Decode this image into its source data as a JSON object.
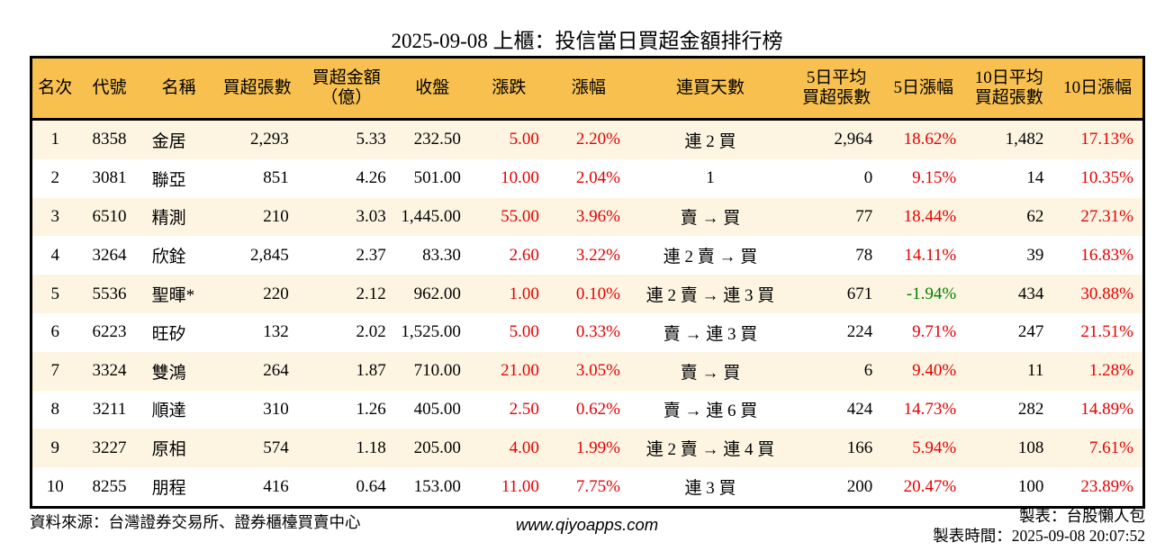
{
  "title": "2025-09-08 上櫃：投信當日買超金額排行榜",
  "colors": {
    "header_bg": "#F7C04F",
    "row_alt_bg": "#FDF5E2",
    "up_red": "#E60000",
    "down_green": "#008000",
    "border": "#000000"
  },
  "table": {
    "headers": [
      {
        "l1": "名次"
      },
      {
        "l1": "代號"
      },
      {
        "l1": "名稱"
      },
      {
        "l1": "買超張數"
      },
      {
        "l1": "買超金額",
        "l2": "（億）"
      },
      {
        "l1": "收盤"
      },
      {
        "l1": "漲跌"
      },
      {
        "l1": "漲幅"
      },
      {
        "l1": "連買天數"
      },
      {
        "l1": "5日平均",
        "l2": "買超張數"
      },
      {
        "l1": "5日漲幅"
      },
      {
        "l1": "10日平均",
        "l2": "買超張數"
      },
      {
        "l1": "10日漲幅"
      }
    ],
    "rows": [
      [
        "1",
        "8358",
        "金居",
        "2,293",
        "5.33",
        "232.50",
        "5.00",
        "2.20%",
        "連 2 買",
        "2,964",
        "18.62%",
        "1,482",
        "17.13%"
      ],
      [
        "2",
        "3081",
        "聯亞",
        "851",
        "4.26",
        "501.00",
        "10.00",
        "2.04%",
        "1",
        "0",
        "9.15%",
        "14",
        "10.35%"
      ],
      [
        "3",
        "6510",
        "精測",
        "210",
        "3.03",
        "1,445.00",
        "55.00",
        "3.96%",
        "賣 → 買",
        "77",
        "18.44%",
        "62",
        "27.31%"
      ],
      [
        "4",
        "3264",
        "欣銓",
        "2,845",
        "2.37",
        "83.30",
        "2.60",
        "3.22%",
        "連 2 賣 → 買",
        "78",
        "14.11%",
        "39",
        "16.83%"
      ],
      [
        "5",
        "5536",
        "聖暉*",
        "220",
        "2.12",
        "962.00",
        "1.00",
        "0.10%",
        "連 2 賣 → 連 3 買",
        "671",
        "-1.94%",
        "434",
        "30.88%"
      ],
      [
        "6",
        "6223",
        "旺矽",
        "132",
        "2.02",
        "1,525.00",
        "5.00",
        "0.33%",
        "賣 → 連 3 買",
        "224",
        "9.71%",
        "247",
        "21.51%"
      ],
      [
        "7",
        "3324",
        "雙鴻",
        "264",
        "1.87",
        "710.00",
        "21.00",
        "3.05%",
        "賣 → 買",
        "6",
        "9.40%",
        "11",
        "1.28%"
      ],
      [
        "8",
        "3211",
        "順達",
        "310",
        "1.26",
        "405.00",
        "2.50",
        "0.62%",
        "賣 → 連 6 買",
        "424",
        "14.73%",
        "282",
        "14.89%"
      ],
      [
        "9",
        "3227",
        "原相",
        "574",
        "1.18",
        "205.00",
        "4.00",
        "1.99%",
        "連 2 賣 → 連 4 買",
        "166",
        "5.94%",
        "108",
        "7.61%"
      ],
      [
        "10",
        "8255",
        "朋程",
        "416",
        "0.64",
        "153.00",
        "11.00",
        "7.75%",
        "連 3 買",
        "200",
        "20.47%",
        "100",
        "23.89%"
      ]
    ]
  },
  "footer": {
    "source": "資料來源：台灣證券交易所、證券櫃檯買賣中心",
    "website": "www.qiyoapps.com",
    "made_by": "製表：台股懶人包",
    "made_time": "製表時間：2025-09-08 20:07:52"
  },
  "chart_data": {
    "type": "table",
    "title": "2025-09-08 上櫃：投信當日買超金額排行榜",
    "columns": [
      "名次",
      "代號",
      "名稱",
      "買超張數",
      "買超金額（億）",
      "收盤",
      "漲跌",
      "漲幅",
      "連買天數",
      "5日平均買超張數",
      "5日漲幅",
      "10日平均買超張數",
      "10日漲幅"
    ],
    "rows": [
      [
        1,
        "8358",
        "金居",
        2293,
        5.33,
        232.5,
        5.0,
        "2.20%",
        "連2買",
        2964,
        "18.62%",
        1482,
        "17.13%"
      ],
      [
        2,
        "3081",
        "聯亞",
        851,
        4.26,
        501.0,
        10.0,
        "2.04%",
        "1",
        0,
        "9.15%",
        14,
        "10.35%"
      ],
      [
        3,
        "6510",
        "精測",
        210,
        3.03,
        1445.0,
        55.0,
        "3.96%",
        "賣→買",
        77,
        "18.44%",
        62,
        "27.31%"
      ],
      [
        4,
        "3264",
        "欣銓",
        2845,
        2.37,
        83.3,
        2.6,
        "3.22%",
        "連2賣→買",
        78,
        "14.11%",
        39,
        "16.83%"
      ],
      [
        5,
        "5536",
        "聖暉*",
        220,
        2.12,
        962.0,
        1.0,
        "0.10%",
        "連2賣→連3買",
        671,
        "-1.94%",
        434,
        "30.88%"
      ],
      [
        6,
        "6223",
        "旺矽",
        132,
        2.02,
        1525.0,
        5.0,
        "0.33%",
        "賣→連3買",
        224,
        "9.71%",
        247,
        "21.51%"
      ],
      [
        7,
        "3324",
        "雙鴻",
        264,
        1.87,
        710.0,
        21.0,
        "3.05%",
        "賣→買",
        6,
        "9.40%",
        11,
        "1.28%"
      ],
      [
        8,
        "3211",
        "順達",
        310,
        1.26,
        405.0,
        2.5,
        "0.62%",
        "賣→連6買",
        424,
        "14.73%",
        282,
        "14.89%"
      ],
      [
        9,
        "3227",
        "原相",
        574,
        1.18,
        205.0,
        4.0,
        "1.99%",
        "連2賣→連4買",
        166,
        "5.94%",
        108,
        "7.61%"
      ],
      [
        10,
        "8255",
        "朋程",
        416,
        0.64,
        153.0,
        11.0,
        "7.75%",
        "連3買",
        200,
        "20.47%",
        100,
        "23.89%"
      ]
    ]
  }
}
